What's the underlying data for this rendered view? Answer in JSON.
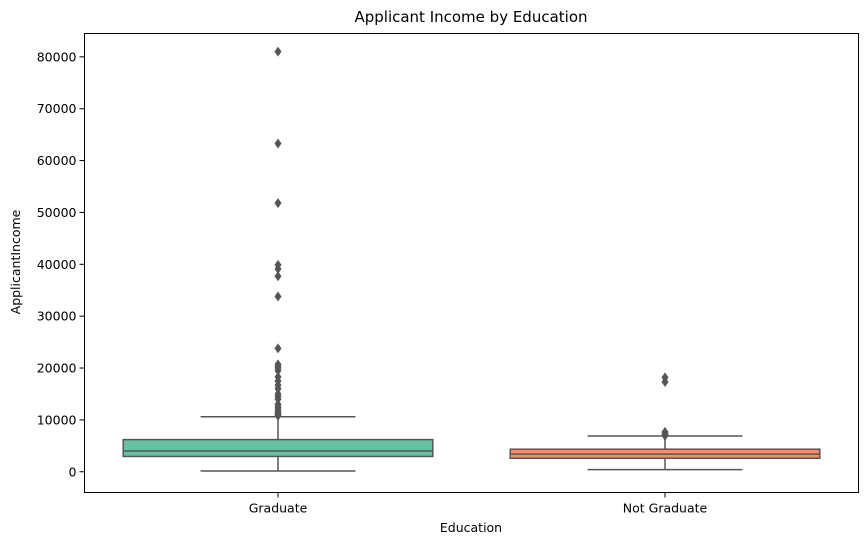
{
  "chart_data": {
    "type": "box",
    "title": "Applicant Income by Education",
    "xlabel": "Education",
    "ylabel": "ApplicantIncome",
    "ylim": [
      -4000,
      84500
    ],
    "yticks": [
      0,
      10000,
      20000,
      30000,
      40000,
      50000,
      60000,
      70000,
      80000
    ],
    "ytick_labels": [
      "0",
      "10000",
      "20000",
      "30000",
      "40000",
      "50000",
      "60000",
      "70000",
      "80000"
    ],
    "grid": false,
    "categories": [
      "Graduate",
      "Not Graduate"
    ],
    "boxes": [
      {
        "category": "Graduate",
        "color": "#66c2a5",
        "whisker_low": 150,
        "q1": 2950,
        "median": 4000,
        "q3": 6200,
        "whisker_high": 10600,
        "outliers": [
          10800,
          11000,
          11300,
          11600,
          12000,
          12500,
          13000,
          14000,
          14500,
          15000,
          16000,
          16700,
          17500,
          18300,
          19500,
          20000,
          20300,
          20700,
          23800,
          33800,
          37700,
          39100,
          39900,
          51800,
          63300,
          81000
        ]
      },
      {
        "category": "Not Graduate",
        "color": "#fc8d62",
        "whisker_low": 400,
        "q1": 2600,
        "median": 3400,
        "q3": 4350,
        "whisker_high": 6900,
        "outliers": [
          6950,
          7200,
          7500,
          7700,
          17300,
          18200
        ]
      }
    ],
    "line_color": "#555555",
    "outlier_color": "#555555"
  }
}
